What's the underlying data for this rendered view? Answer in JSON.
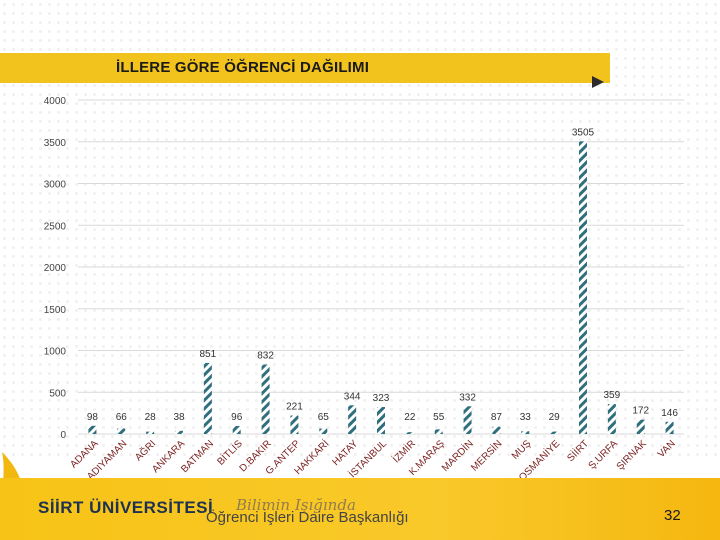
{
  "title": "İLLERE GÖRE ÖĞRENCİ DAĞILIMI",
  "footer": {
    "university": "SİİRT ÜNİVERSİTESİ",
    "slogan": "Bilimin Işığında",
    "department": "Öğrenci İşleri Daire Başkanlığı",
    "page_number": "32"
  },
  "colors": {
    "accent": "#f2c21d",
    "bar_stripe": "#2f6f7e",
    "navy": "#1d3150"
  },
  "chart_data": {
    "type": "bar",
    "title": "İLLERE GÖRE ÖĞRENCİ DAĞILIMI",
    "xlabel": "",
    "ylabel": "",
    "ylim": [
      0,
      4000
    ],
    "yticks": [
      0,
      500,
      1000,
      1500,
      2000,
      2500,
      3000,
      3500,
      4000
    ],
    "grid": true,
    "legend": "none",
    "categories": [
      "ADANA",
      "ADIYAMAN",
      "AĞRI",
      "ANKARA",
      "BATMAN",
      "BİTLİS",
      "D.BAKIR",
      "G.ANTEP",
      "HAKKARİ",
      "HATAY",
      "İSTANBUL",
      "İZMİR",
      "K.MARAŞ",
      "MARDİN",
      "MERSİN",
      "MUŞ",
      "OSMANİYE",
      "SİİRT",
      "Ş.URFA",
      "ŞIRNAK",
      "VAN"
    ],
    "values": [
      98,
      66,
      28,
      38,
      851,
      96,
      832,
      221,
      65,
      344,
      323,
      22,
      55,
      332,
      87,
      33,
      29,
      3505,
      359,
      172,
      146
    ]
  }
}
